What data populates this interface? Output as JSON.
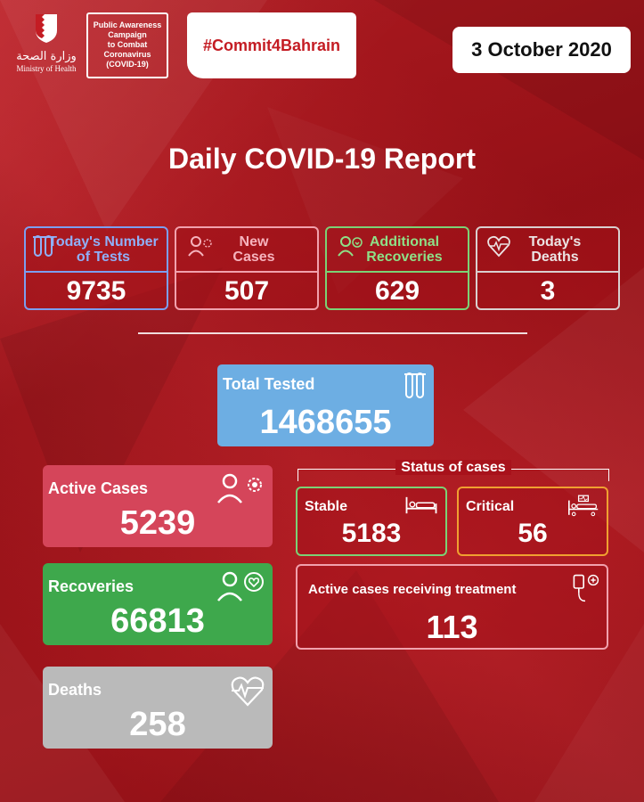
{
  "header": {
    "ministry_arabic": "وزارة الصحة",
    "ministry_english": "Ministry of Health",
    "campaign_lines": [
      "Public Awareness",
      "Campaign",
      "to Combat",
      "Coronavirus",
      "(COVID-19)"
    ],
    "hashtag": "#Commit4Bahrain",
    "date": "3 October 2020"
  },
  "title": "Daily COVID-19 Report",
  "daily": {
    "tests": {
      "label_1": "Today's Number",
      "label_2": "of Tests",
      "value": "9735"
    },
    "new_cases": {
      "label_1": "New",
      "label_2": "Cases",
      "value": "507"
    },
    "recoveries": {
      "label_1": "Additional",
      "label_2": "Recoveries",
      "value": "629"
    },
    "deaths": {
      "label_1": "Today's",
      "label_2": "Deaths",
      "value": "3"
    }
  },
  "total_tested": {
    "label": "Total Tested",
    "value": "1468655"
  },
  "cumulative": {
    "active": {
      "label": "Active Cases",
      "value": "5239"
    },
    "recoveries": {
      "label": "Recoveries",
      "value": "66813"
    },
    "deaths": {
      "label": "Deaths",
      "value": "258"
    }
  },
  "status": {
    "heading": "Status of cases",
    "stable": {
      "label": "Stable",
      "value": "5183"
    },
    "critical": {
      "label": "Critical",
      "value": "56"
    },
    "treatment": {
      "label": "Active cases receiving treatment",
      "value": "113"
    }
  },
  "colors": {
    "background": "#b0141c",
    "tests": "#7c9ef0",
    "new_cases": "#f1a1ad",
    "recoveries": "#7bd275",
    "deaths": "#d9d0d0",
    "total_tested": "#6daee3",
    "active_card": "#d5455a",
    "recoveries_card": "#3ea84c",
    "deaths_card": "#bababa",
    "critical": "#f0a030"
  },
  "icons": {
    "tests": "test-tubes-icon",
    "new_cases": "person-virus-icon",
    "recoveries": "person-heart-chat-icon",
    "deaths": "heartbeat-icon",
    "stable": "hospital-bed-icon",
    "critical": "icu-bed-icon",
    "treatment": "iv-drip-icon"
  }
}
